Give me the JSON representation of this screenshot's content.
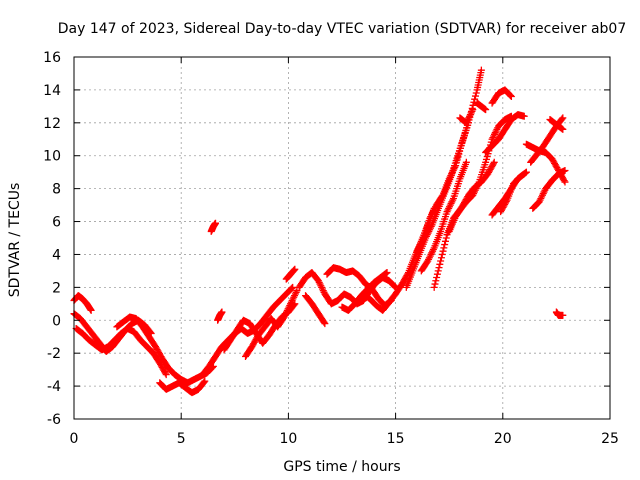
{
  "chart_data": {
    "type": "scatter",
    "title": "Day 147 of 2023, Sidereal Day-to-day VTEC variation (SDTVAR) for receiver ab07",
    "xlabel": "GPS time / hours",
    "ylabel": "SDTVAR / TECUs",
    "xlim": [
      0,
      25
    ],
    "ylim": [
      -6,
      16
    ],
    "xticks": [
      0,
      5,
      10,
      15,
      20,
      25
    ],
    "yticks": [
      -6,
      -4,
      -2,
      0,
      2,
      4,
      6,
      8,
      10,
      12,
      14,
      16
    ],
    "grid": true,
    "marker": "plus",
    "color": "#ff0000",
    "series": [
      {
        "name": "SDTVAR",
        "tracks": [
          {
            "x": [
              0.0,
              0.2,
              0.4,
              0.6,
              0.8
            ],
            "y": [
              1.2,
              1.5,
              1.3,
              1.0,
              0.6
            ]
          },
          {
            "x": [
              0.0,
              0.3,
              0.6,
              0.9,
              1.2,
              1.5,
              1.8,
              2.1,
              2.4,
              2.7,
              3.0,
              3.3,
              3.6
            ],
            "y": [
              0.4,
              0.1,
              -0.4,
              -0.9,
              -1.4,
              -1.9,
              -1.6,
              -1.1,
              -0.6,
              -0.2,
              0.0,
              -0.3,
              -0.8
            ]
          },
          {
            "x": [
              0.1,
              0.4,
              0.7,
              1.0,
              1.3,
              1.6,
              1.9,
              2.2,
              2.5,
              2.8,
              3.1,
              3.4,
              3.7,
              4.0,
              4.3
            ],
            "y": [
              -0.5,
              -0.8,
              -1.2,
              -1.5,
              -1.8,
              -1.6,
              -1.2,
              -0.8,
              -0.5,
              -0.7,
              -1.2,
              -1.6,
              -2.0,
              -2.6,
              -3.3
            ]
          },
          {
            "x": [
              2.0,
              2.3,
              2.6,
              2.9,
              3.2,
              3.5,
              3.8,
              4.1,
              4.4,
              4.7,
              5.0,
              5.3,
              5.6,
              5.9,
              6.2,
              6.5
            ],
            "y": [
              -0.4,
              -0.1,
              0.2,
              0.1,
              -0.4,
              -1.0,
              -1.6,
              -2.3,
              -2.9,
              -3.3,
              -3.6,
              -3.8,
              -3.6,
              -3.4,
              -3.2,
              -2.8
            ]
          },
          {
            "x": [
              4.0,
              4.3,
              4.6,
              4.9,
              5.2,
              5.5,
              5.8,
              6.1
            ],
            "y": [
              -3.8,
              -4.2,
              -4.0,
              -3.8,
              -4.1,
              -4.4,
              -4.2,
              -3.7
            ]
          },
          {
            "x": [
              6.0,
              6.3,
              6.6,
              6.9,
              7.2,
              7.5,
              7.8,
              8.1,
              8.4,
              8.7,
              9.0,
              9.3,
              9.6,
              9.9,
              10.2
            ],
            "y": [
              -3.3,
              -2.8,
              -2.2,
              -1.6,
              -1.2,
              -0.8,
              -0.5,
              -0.8,
              -0.6,
              -0.2,
              0.3,
              0.8,
              1.2,
              1.6,
              2.0
            ]
          },
          {
            "x": [
              7.0,
              7.3,
              7.6,
              7.9,
              8.2,
              8.5,
              8.8,
              9.1,
              9.4,
              9.7,
              10.0,
              10.3
            ],
            "y": [
              -1.8,
              -1.2,
              -0.6,
              0.0,
              -0.2,
              -0.8,
              -1.4,
              -0.9,
              -0.3,
              0.2,
              0.5,
              1.0
            ]
          },
          {
            "x": [
              8.0,
              8.3,
              8.6,
              8.9,
              9.2,
              9.5,
              9.8,
              10.1,
              10.4
            ],
            "y": [
              -2.2,
              -1.6,
              -0.9,
              -0.4,
              0.1,
              -0.4,
              0.2,
              1.0,
              1.8
            ]
          },
          {
            "x": [
              6.4,
              6.5,
              6.6
            ],
            "y": [
              5.4,
              5.7,
              5.9
            ]
          },
          {
            "x": [
              6.7,
              6.8,
              6.9
            ],
            "y": [
              0.0,
              0.3,
              0.5
            ]
          },
          {
            "x": [
              9.9,
              10.1,
              10.3
            ],
            "y": [
              2.5,
              2.8,
              3.1
            ]
          },
          {
            "x": [
              10.5,
              10.8,
              11.1,
              11.4,
              11.7,
              12.0,
              12.3,
              12.6,
              12.9,
              13.2,
              13.5,
              13.8,
              14.1,
              14.4,
              14.7,
              15.0
            ],
            "y": [
              2.0,
              2.6,
              2.9,
              2.4,
              1.6,
              1.0,
              1.2,
              1.6,
              1.4,
              1.0,
              1.2,
              1.8,
              2.3,
              2.6,
              2.4,
              2.0
            ]
          },
          {
            "x": [
              10.8,
              11.1,
              11.4,
              11.7
            ],
            "y": [
              1.5,
              1.0,
              0.4,
              -0.2
            ]
          },
          {
            "x": [
              11.8,
              12.1,
              12.4,
              12.7,
              13.0,
              13.3,
              13.6,
              13.9,
              14.2,
              14.5,
              14.8
            ],
            "y": [
              2.8,
              3.2,
              3.1,
              2.9,
              3.0,
              2.7,
              2.2,
              1.9,
              1.3,
              0.9,
              1.2
            ]
          },
          {
            "x": [
              12.5,
              12.8,
              13.1,
              13.4,
              13.7,
              14.0,
              14.3,
              14.6
            ],
            "y": [
              0.8,
              0.6,
              1.0,
              1.5,
              1.9,
              2.3,
              2.6,
              2.9
            ]
          },
          {
            "x": [
              13.5,
              13.8,
              14.1,
              14.4,
              14.7,
              15.0,
              15.3,
              15.6,
              15.9,
              16.2,
              16.5,
              16.8
            ],
            "y": [
              1.6,
              1.3,
              0.9,
              0.6,
              1.1,
              1.6,
              2.2,
              2.9,
              3.9,
              4.8,
              5.8,
              6.8
            ]
          },
          {
            "x": [
              15.5,
              15.8,
              16.1,
              16.4,
              16.7,
              17.0,
              17.3,
              17.6,
              17.9,
              18.2,
              18.5,
              18.8,
              19.0
            ],
            "y": [
              2.0,
              3.0,
              4.0,
              5.0,
              5.8,
              6.8,
              7.8,
              8.8,
              10.0,
              11.2,
              12.5,
              14.0,
              15.2
            ]
          },
          {
            "x": [
              16.0,
              16.3,
              16.6,
              16.9,
              17.2,
              17.5,
              17.8,
              18.1,
              18.4
            ],
            "y": [
              4.2,
              5.0,
              6.2,
              7.0,
              7.6,
              8.6,
              9.4,
              10.8,
              12.0
            ]
          },
          {
            "x": [
              16.2,
              16.5,
              16.8,
              17.1,
              17.4,
              17.7,
              18.0,
              18.3
            ],
            "y": [
              3.0,
              3.6,
              4.4,
              5.4,
              6.6,
              7.4,
              8.6,
              9.6
            ]
          },
          {
            "x": [
              16.8,
              17.1,
              17.4,
              17.7,
              18.0,
              18.3,
              18.6,
              18.9,
              19.2,
              19.5,
              19.8,
              20.1,
              20.4
            ],
            "y": [
              2.0,
              3.6,
              5.2,
              6.2,
              6.7,
              7.2,
              7.6,
              8.4,
              9.6,
              11.0,
              11.8,
              12.2,
              12.4
            ]
          },
          {
            "x": [
              17.5,
              17.8,
              18.1,
              18.4,
              18.7,
              19.0,
              19.3,
              19.6
            ],
            "y": [
              5.4,
              6.3,
              6.9,
              7.6,
              8.1,
              8.4,
              8.9,
              9.6
            ]
          },
          {
            "x": [
              18.0,
              18.3,
              18.6
            ],
            "y": [
              12.3,
              12.0,
              12.8
            ]
          },
          {
            "x": [
              18.8,
              19.0,
              19.2
            ],
            "y": [
              13.2,
              13.0,
              12.8
            ]
          },
          {
            "x": [
              19.2,
              19.5,
              19.8,
              20.1,
              20.4,
              20.7,
              21.0
            ],
            "y": [
              10.2,
              10.6,
              11.0,
              11.6,
              12.2,
              12.5,
              12.4
            ]
          },
          {
            "x": [
              19.5,
              19.8,
              20.1,
              20.4
            ],
            "y": [
              13.2,
              13.8,
              14.0,
              13.6
            ]
          },
          {
            "x": [
              19.5,
              19.8,
              20.1,
              20.4,
              20.7,
              21.0
            ],
            "y": [
              6.4,
              6.9,
              7.4,
              8.0,
              8.6,
              8.9
            ]
          },
          {
            "x": [
              19.9,
              20.2,
              20.5,
              20.8,
              21.1
            ],
            "y": [
              6.6,
              7.3,
              8.3,
              8.7,
              9.0
            ]
          },
          {
            "x": [
              21.1,
              21.4,
              21.7,
              22.0,
              22.3,
              22.6,
              22.9
            ],
            "y": [
              10.7,
              10.5,
              10.3,
              10.2,
              9.8,
              9.1,
              8.4
            ]
          },
          {
            "x": [
              21.3,
              21.6,
              21.9,
              22.2,
              22.5,
              22.8
            ],
            "y": [
              9.6,
              10.1,
              10.6,
              11.2,
              11.8,
              12.3
            ]
          },
          {
            "x": [
              21.4,
              21.7,
              22.0,
              22.3,
              22.6,
              22.9
            ],
            "y": [
              6.8,
              7.2,
              8.0,
              8.5,
              8.9,
              9.1
            ]
          },
          {
            "x": [
              22.2,
              22.5,
              22.8
            ],
            "y": [
              12.2,
              11.9,
              11.6
            ]
          },
          {
            "x": [
              22.5,
              22.6,
              22.8
            ],
            "y": [
              0.5,
              0.3,
              0.3
            ]
          }
        ]
      }
    ]
  }
}
